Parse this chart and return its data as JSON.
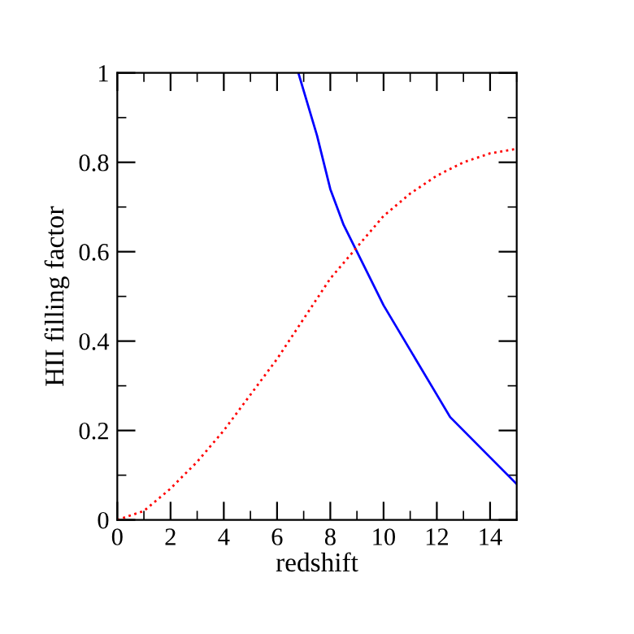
{
  "chart_data": {
    "type": "line",
    "xlabel": "redshift",
    "ylabel": "HII filling factor",
    "xlim": [
      0,
      15
    ],
    "ylim": [
      0,
      1
    ],
    "xticks": [
      0,
      2,
      4,
      6,
      8,
      10,
      12,
      14
    ],
    "yticks": [
      0,
      0.2,
      0.4,
      0.6,
      0.8,
      1
    ],
    "grid": false,
    "legend": false,
    "marker": "none",
    "series": [
      {
        "color": "#0000ff",
        "line_style": "solid",
        "x": [
          6.8,
          7.5,
          8,
          8.5,
          9,
          10,
          11,
          12,
          12.5,
          13,
          14,
          15
        ],
        "values": [
          1.0,
          0.86,
          0.74,
          0.66,
          0.6,
          0.48,
          0.38,
          0.28,
          0.23,
          0.2,
          0.14,
          0.08
        ]
      },
      {
        "color": "#ff0000",
        "line_style": "dotted",
        "x": [
          0,
          1,
          2,
          3,
          4,
          5,
          6,
          7,
          8,
          9,
          10,
          11,
          12,
          13,
          14,
          15
        ],
        "values": [
          0,
          0.02,
          0.07,
          0.13,
          0.2,
          0.28,
          0.36,
          0.45,
          0.54,
          0.61,
          0.68,
          0.73,
          0.77,
          0.8,
          0.82,
          0.83
        ]
      }
    ]
  }
}
